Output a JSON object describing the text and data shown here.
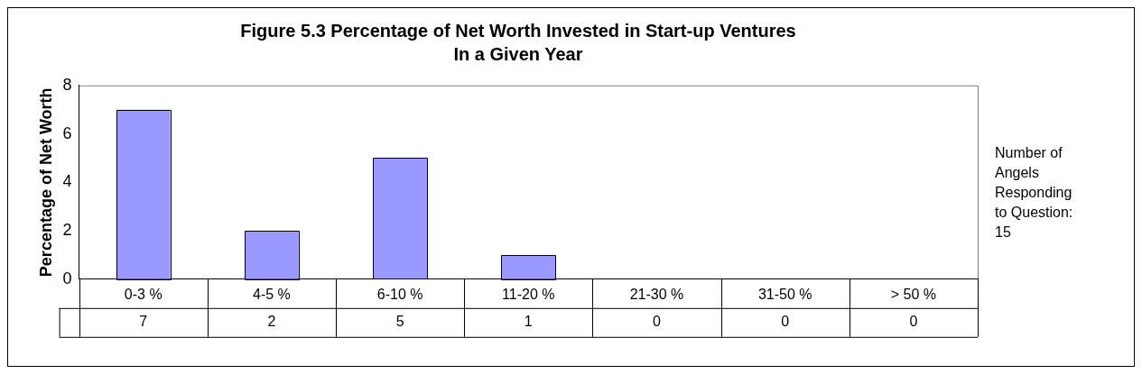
{
  "chart_data": {
    "type": "bar",
    "title": "Figure 5.3 Percentage of Net Worth Invested in Start-up Ventures In a Given Year",
    "ylabel": "Percentage of Net Worth",
    "categories": [
      "0-3 %",
      "4-5 %",
      "6-10 %",
      "11-20 %",
      "21-30 %",
      "31-50 %",
      "> 50 %"
    ],
    "values": [
      7,
      2,
      5,
      1,
      0,
      0,
      0
    ],
    "color": "#9999ff",
    "ylim": [
      0,
      8
    ],
    "yticks": [
      0,
      2,
      4,
      6,
      8
    ],
    "grid": false,
    "legend": false,
    "data_labels": true,
    "annotations": [
      "Number of Angels Responding to Question: 15"
    ]
  }
}
